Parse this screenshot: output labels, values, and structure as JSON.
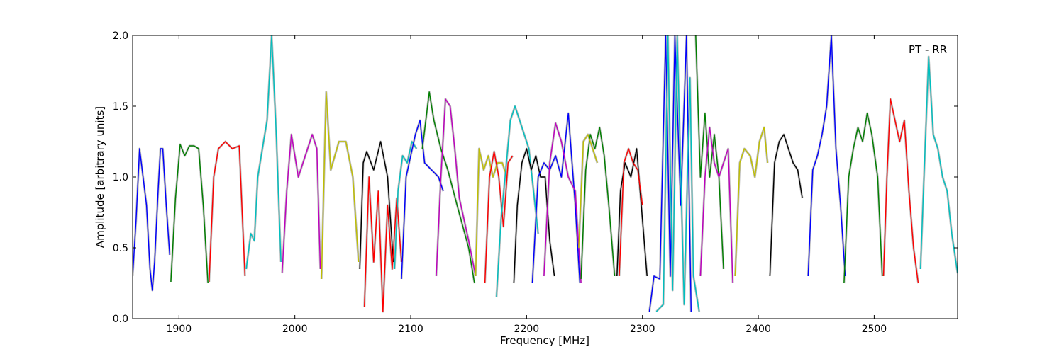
{
  "chart_data": {
    "type": "line",
    "annotation": "PT - RR",
    "xlabel": "Frequency [MHz]",
    "ylabel": "Amplitude [arbitrary units]",
    "xlim": [
      1860,
      2572
    ],
    "ylim": [
      0,
      2.0
    ],
    "x_ticks": [
      1900,
      2000,
      2100,
      2200,
      2300,
      2400,
      2500
    ],
    "y_ticks": [
      0.0,
      0.5,
      1.0,
      1.5,
      2.0
    ],
    "x_tick_labels": [
      "1900",
      "2000",
      "2100",
      "2200",
      "2300",
      "2400",
      "2500"
    ],
    "y_tick_labels": [
      "0.0",
      "0.5",
      "1.0",
      "1.5",
      "2.0"
    ],
    "grid": false,
    "background_trace_color": "#bfbfbf",
    "series": [
      {
        "color": "#0000ff",
        "x": [
          1860,
          1863,
          1866,
          1869,
          1872,
          1875,
          1877,
          1879,
          1882,
          1884,
          1886,
          1889,
          1892
        ],
        "y": [
          0.3,
          0.7,
          1.2,
          1.0,
          0.8,
          0.35,
          0.2,
          0.4,
          0.9,
          1.2,
          1.2,
          0.8,
          0.45
        ]
      },
      {
        "color": "#008000",
        "x": [
          1893,
          1897,
          1901,
          1905,
          1909,
          1913,
          1917,
          1921,
          1925
        ],
        "y": [
          0.26,
          0.85,
          1.23,
          1.15,
          1.22,
          1.22,
          1.2,
          0.8,
          0.25
        ]
      },
      {
        "color": "#ff0000",
        "x": [
          1926,
          1930,
          1934,
          1940,
          1946,
          1952,
          1957
        ],
        "y": [
          0.26,
          1.0,
          1.2,
          1.25,
          1.2,
          1.22,
          0.3
        ]
      },
      {
        "color": "#00bfbf",
        "x": [
          1958,
          1962,
          1965,
          1968,
          1972,
          1976,
          1980,
          1984,
          1988
        ],
        "y": [
          0.35,
          0.6,
          0.55,
          1.0,
          1.2,
          1.4,
          2.0,
          1.3,
          0.4
        ]
      },
      {
        "color": "#bf00bf",
        "x": [
          1989,
          1993,
          1997,
          2003,
          2009,
          2015,
          2019,
          2022
        ],
        "y": [
          0.32,
          0.9,
          1.3,
          1.0,
          1.15,
          1.3,
          1.2,
          0.35
        ]
      },
      {
        "color": "#bfbf00",
        "x": [
          2023,
          2027,
          2031,
          2038,
          2044,
          2050,
          2055
        ],
        "y": [
          0.28,
          1.6,
          1.05,
          1.25,
          1.25,
          1.0,
          0.4
        ]
      },
      {
        "color": "#000000",
        "x": [
          2056,
          2059,
          2062,
          2068,
          2074,
          2080,
          2085
        ],
        "y": [
          0.35,
          1.1,
          1.18,
          1.05,
          1.25,
          1.0,
          0.4
        ]
      },
      {
        "color": "#ff0000",
        "x": [
          2060,
          2064,
          2068,
          2072,
          2076,
          2080,
          2084,
          2088,
          2092
        ],
        "y": [
          0.08,
          1.0,
          0.4,
          0.9,
          0.05,
          0.8,
          0.35,
          0.85,
          0.4
        ]
      },
      {
        "color": "#00bfbf",
        "x": [
          2086,
          2089,
          2093,
          2097,
          2101,
          2105
        ],
        "y": [
          0.35,
          0.9,
          1.15,
          1.1,
          1.25,
          1.2
        ]
      },
      {
        "color": "#0000ff",
        "x": [
          2092,
          2096,
          2100,
          2104,
          2108,
          2112,
          2118,
          2124,
          2128
        ],
        "y": [
          0.28,
          1.0,
          1.15,
          1.3,
          1.4,
          1.1,
          1.05,
          1.0,
          0.9
        ]
      },
      {
        "color": "#008000",
        "x": [
          2110,
          2116,
          2120,
          2126,
          2132,
          2140,
          2150,
          2155
        ],
        "y": [
          1.2,
          1.6,
          1.4,
          1.2,
          1.05,
          0.8,
          0.5,
          0.25
        ]
      },
      {
        "color": "#bf00bf",
        "x": [
          2122,
          2126,
          2130,
          2134,
          2138,
          2142,
          2150,
          2156
        ],
        "y": [
          0.3,
          1.0,
          1.55,
          1.5,
          1.2,
          0.85,
          0.55,
          0.3
        ]
      },
      {
        "color": "#bfbf00",
        "x": [
          2156,
          2159,
          2163,
          2167,
          2171,
          2175,
          2179,
          2183
        ],
        "y": [
          0.3,
          1.2,
          1.05,
          1.15,
          1.0,
          1.1,
          1.1,
          1.0
        ]
      },
      {
        "color": "#ff0000",
        "x": [
          2164,
          2168,
          2172,
          2176,
          2180,
          2184,
          2188
        ],
        "y": [
          0.25,
          1.0,
          1.18,
          1.0,
          0.65,
          1.1,
          1.15
        ]
      },
      {
        "color": "#00bfbf",
        "x": [
          2174,
          2178,
          2182,
          2186,
          2190,
          2194,
          2198,
          2202,
          2206,
          2210
        ],
        "y": [
          0.15,
          0.7,
          1.05,
          1.4,
          1.5,
          1.4,
          1.3,
          1.2,
          0.9,
          0.6
        ]
      },
      {
        "color": "#000000",
        "x": [
          2189,
          2192,
          2196,
          2200,
          2204,
          2208,
          2212,
          2216,
          2220,
          2224
        ],
        "y": [
          0.25,
          0.8,
          1.1,
          1.2,
          1.05,
          1.15,
          1.0,
          1.0,
          0.55,
          0.3
        ]
      },
      {
        "color": "#0000ff",
        "x": [
          2205,
          2210,
          2215,
          2220,
          2225,
          2230,
          2236,
          2242,
          2246
        ],
        "y": [
          0.25,
          1.0,
          1.1,
          1.05,
          1.15,
          1.0,
          1.45,
          0.8,
          0.25
        ]
      },
      {
        "color": "#bf00bf",
        "x": [
          2215,
          2220,
          2225,
          2230,
          2236,
          2242,
          2247
        ],
        "y": [
          0.3,
          1.1,
          1.38,
          1.25,
          1.0,
          0.9,
          0.25
        ]
      },
      {
        "color": "#008000",
        "x": [
          2247,
          2251,
          2255,
          2259,
          2263,
          2267,
          2271,
          2276
        ],
        "y": [
          0.28,
          1.05,
          1.3,
          1.2,
          1.35,
          1.15,
          0.8,
          0.3
        ]
      },
      {
        "color": "#bfbf00",
        "x": [
          2245,
          2249,
          2253,
          2257,
          2261
        ],
        "y": [
          0.5,
          1.25,
          1.3,
          1.2,
          1.1
        ]
      },
      {
        "color": "#000000",
        "x": [
          2278,
          2281,
          2285,
          2290,
          2295,
          2300,
          2304
        ],
        "y": [
          0.3,
          0.9,
          1.1,
          1.0,
          1.2,
          0.7,
          0.3
        ]
      },
      {
        "color": "#ff0000",
        "x": [
          2280,
          2284,
          2288,
          2292,
          2296,
          2300
        ],
        "y": [
          0.3,
          1.1,
          1.2,
          1.1,
          1.05,
          0.8
        ]
      },
      {
        "color": "#0000ff",
        "x": [
          2306,
          2310,
          2315,
          2320,
          2324,
          2328,
          2333,
          2338,
          2342
        ],
        "y": [
          0.05,
          0.3,
          0.28,
          2.0,
          0.3,
          2.0,
          0.8,
          2.0,
          0.05
        ]
      },
      {
        "color": "#00bfbf",
        "x": [
          2312,
          2318,
          2322,
          2326,
          2330,
          2336,
          2341,
          2344,
          2349
        ],
        "y": [
          0.05,
          0.1,
          2.0,
          0.2,
          2.0,
          0.1,
          1.7,
          0.3,
          0.05
        ]
      },
      {
        "color": "#008000",
        "x": [
          2346,
          2350,
          2354,
          2358,
          2362,
          2366,
          2370
        ],
        "y": [
          2.0,
          1.0,
          1.45,
          1.0,
          1.3,
          1.0,
          0.35
        ]
      },
      {
        "color": "#bf00bf",
        "x": [
          2350,
          2354,
          2358,
          2362,
          2366,
          2370,
          2374,
          2378
        ],
        "y": [
          0.3,
          1.0,
          1.35,
          1.1,
          1.0,
          1.1,
          1.2,
          0.25
        ]
      },
      {
        "color": "#bfbf00",
        "x": [
          2380,
          2384,
          2388,
          2393,
          2397,
          2401,
          2405,
          2408
        ],
        "y": [
          0.3,
          1.1,
          1.2,
          1.15,
          1.0,
          1.25,
          1.35,
          1.1
        ]
      },
      {
        "color": "#000000",
        "x": [
          2410,
          2414,
          2418,
          2422,
          2426,
          2430,
          2434,
          2438
        ],
        "y": [
          0.3,
          1.1,
          1.25,
          1.3,
          1.2,
          1.1,
          1.05,
          0.85
        ]
      },
      {
        "color": "#0000ff",
        "x": [
          2443,
          2447,
          2451,
          2455,
          2459,
          2463,
          2467,
          2471,
          2475
        ],
        "y": [
          0.3,
          1.05,
          1.15,
          1.3,
          1.5,
          2.0,
          1.2,
          0.8,
          0.3
        ]
      },
      {
        "color": "#008000",
        "x": [
          2474,
          2478,
          2482,
          2486,
          2490,
          2494,
          2498,
          2503,
          2507
        ],
        "y": [
          0.25,
          1.0,
          1.2,
          1.35,
          1.25,
          1.45,
          1.3,
          1.0,
          0.3
        ]
      },
      {
        "color": "#ff0000",
        "x": [
          2508,
          2511,
          2514,
          2518,
          2522,
          2526,
          2530,
          2534,
          2538
        ],
        "y": [
          0.3,
          1.0,
          1.55,
          1.4,
          1.25,
          1.4,
          0.9,
          0.5,
          0.25
        ]
      },
      {
        "color": "#00bfbf",
        "x": [
          2540,
          2543,
          2547,
          2551,
          2555,
          2559,
          2563,
          2567,
          2572
        ],
        "y": [
          0.35,
          1.0,
          1.85,
          1.3,
          1.2,
          1.0,
          0.9,
          0.6,
          0.32
        ]
      }
    ]
  }
}
